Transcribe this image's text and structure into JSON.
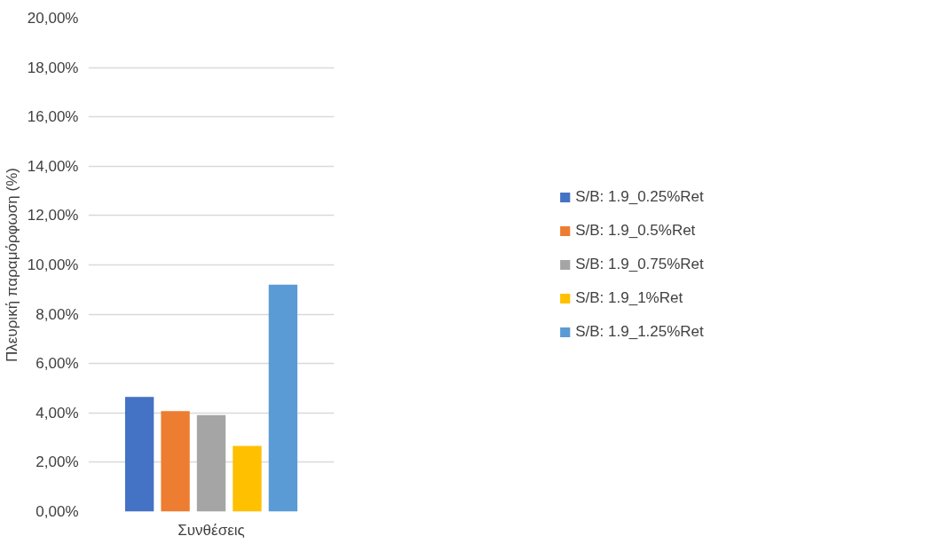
{
  "chart_data": {
    "type": "bar",
    "xlabel": "Συνθέσεις",
    "ylabel": "Πλευρική παραμόρφωση (%)",
    "categories": [
      null
    ],
    "series": [
      {
        "name": "S/B: 1.9_0.25%Ret",
        "color": "#4472c4",
        "values": [
          4.65
        ]
      },
      {
        "name": "S/B: 1.9_0.5%Ret",
        "color": "#ed7d31",
        "values": [
          4.07
        ]
      },
      {
        "name": "S/B: 1.9_0.75%Ret",
        "color": "#a5a5a5",
        "values": [
          3.91
        ]
      },
      {
        "name": "S/B: 1.9_1%Ret",
        "color": "#ffc000",
        "values": [
          2.66
        ]
      },
      {
        "name": "S/B: 1.9_1.25%Ret",
        "color": "#5b9bd5",
        "values": [
          9.2
        ]
      }
    ],
    "ylim": [
      0,
      20
    ],
    "yticks": [
      {
        "value": 0,
        "label": "0,00%"
      },
      {
        "value": 2,
        "label": "2,00%"
      },
      {
        "value": 4,
        "label": "4,00%"
      },
      {
        "value": 6,
        "label": "6,00%"
      },
      {
        "value": 8,
        "label": "8,00%"
      },
      {
        "value": 10,
        "label": "10,00%"
      },
      {
        "value": 12,
        "label": "12,00%"
      },
      {
        "value": 14,
        "label": "14,00%"
      },
      {
        "value": 16,
        "label": "16,00%"
      },
      {
        "value": 18,
        "label": "18,00%"
      },
      {
        "value": 20,
        "label": "20,00%"
      }
    ],
    "grid": "y",
    "legend": "right"
  }
}
